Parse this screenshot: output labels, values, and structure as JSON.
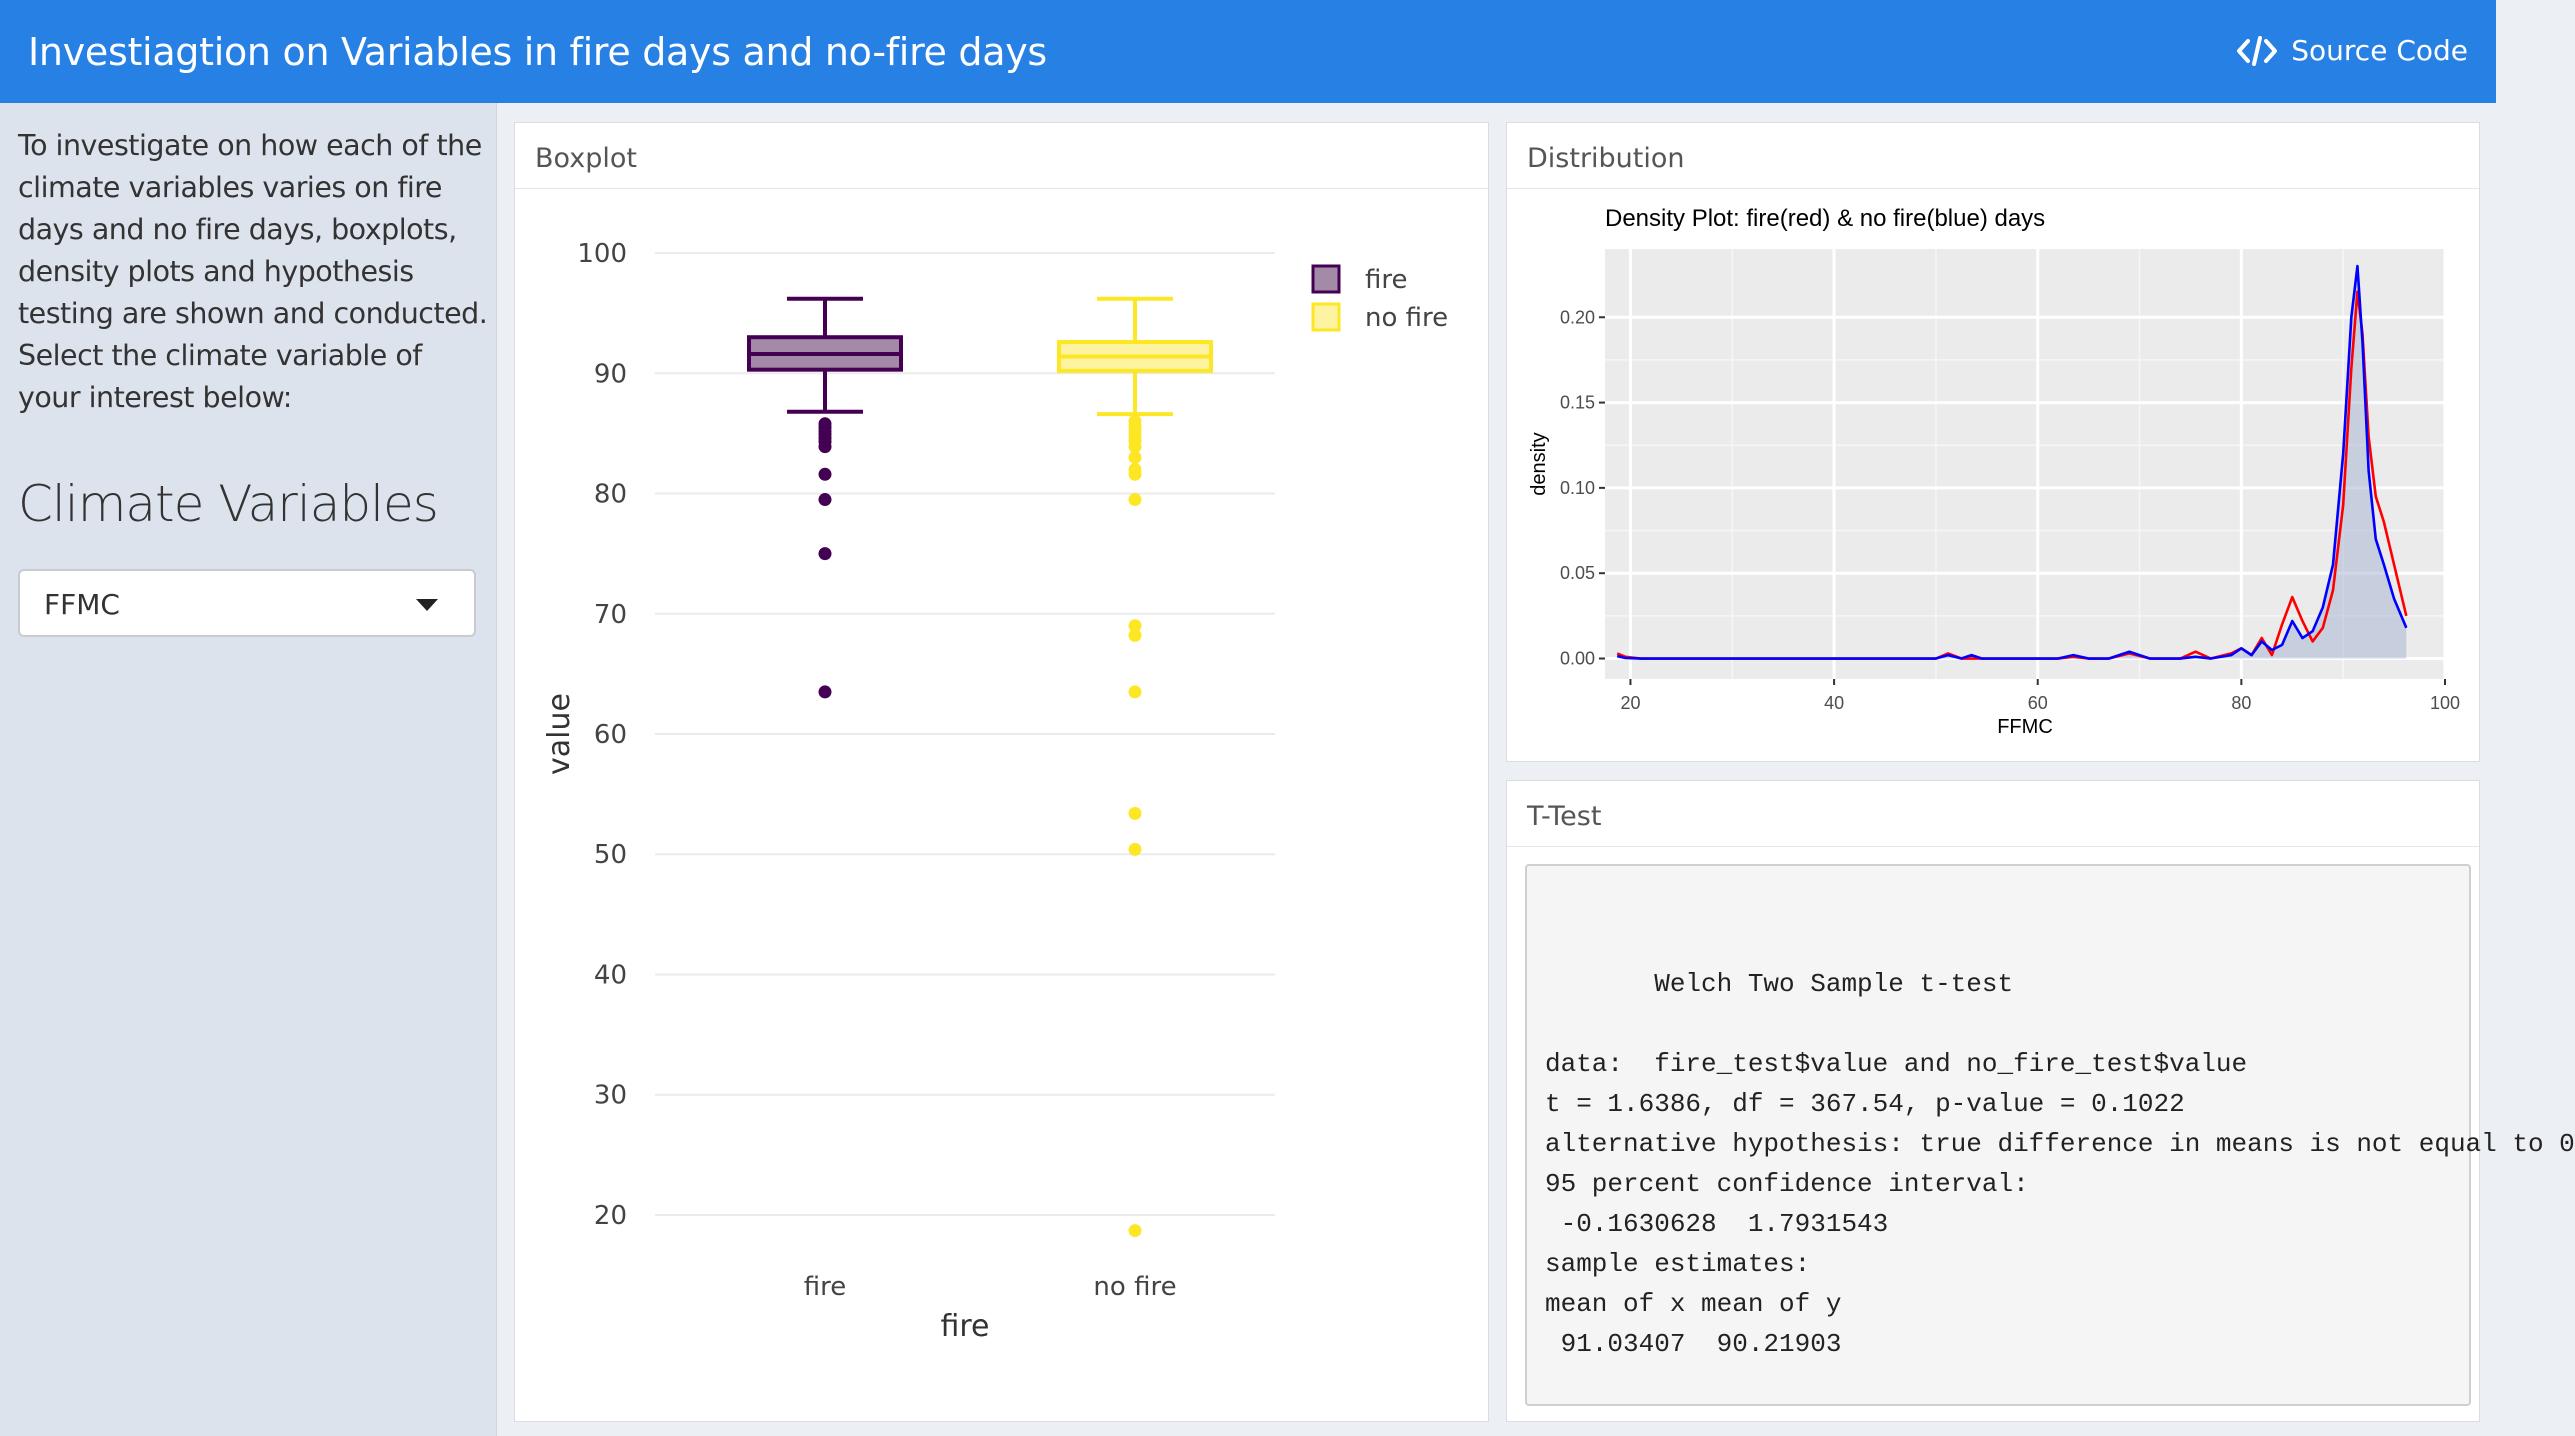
{
  "navbar": {
    "title": "Investiagtion on Variables in fire days and no-fire days",
    "source_code_label": "Source Code",
    "bg_color": "#2780e3"
  },
  "sidebar": {
    "description": "To investigate on how each of the climate variables varies on fire days and no fire days, boxplots, density plots and hypothesis testing are shown and conducted. Select the climate variable of your interest below:",
    "heading": "Climate Variables",
    "select_value": "FFMC"
  },
  "panels": {
    "boxplot_title": "Boxplot",
    "distribution_title": "Distribution",
    "ttest_title": "T-Test"
  },
  "ttest": {
    "lines": [
      "",
      "       Welch Two Sample t-test",
      "",
      "data:  fire_test$value and no_fire_test$value",
      "t = 1.6386, df = 367.54, p-value = 0.1022",
      "alternative hypothesis: true difference in means is not equal to 0",
      "95 percent confidence interval:",
      " -0.1630628  1.7931543",
      "sample estimates:",
      "mean of x mean of y",
      " 91.03407  90.21903"
    ]
  },
  "chart_data": [
    {
      "type": "boxplot",
      "xlabel": "fire",
      "ylabel": "value",
      "ylim": [
        18,
        102
      ],
      "yticks": [
        20,
        30,
        40,
        50,
        60,
        70,
        80,
        90,
        100
      ],
      "categories": [
        "fire",
        "no fire"
      ],
      "legend": {
        "title": "",
        "placement": "right",
        "entries": [
          "fire",
          "no fire"
        ]
      },
      "grid": true,
      "series": [
        {
          "name": "fire",
          "color": "#440154",
          "fill": "#a38ba8",
          "min": 86.8,
          "q1": 90.3,
          "median": 91.6,
          "q3": 93.0,
          "max": 96.2,
          "outliers": [
            85.8,
            85.5,
            85.2,
            84.9,
            84.6,
            84.3,
            83.9,
            81.6,
            79.5,
            75.0,
            63.5
          ]
        },
        {
          "name": "no fire",
          "color": "#fde725",
          "fill": "#fdf3a0",
          "min": 86.6,
          "q1": 90.2,
          "median": 91.4,
          "q3": 92.6,
          "max": 96.2,
          "outliers": [
            86.0,
            85.6,
            85.2,
            84.8,
            84.4,
            83.9,
            83.0,
            82.0,
            81.6,
            79.5,
            69.0,
            68.2,
            63.5,
            53.4,
            50.4,
            18.7
          ]
        }
      ]
    },
    {
      "type": "area",
      "title": "Density Plot: fire(red) & no fire(blue) days",
      "xlabel": "FFMC",
      "ylabel": "density",
      "xlim": [
        17.5,
        100
      ],
      "ylim": [
        -0.012,
        0.24
      ],
      "xticks": [
        20,
        40,
        60,
        80,
        100
      ],
      "yticks": [
        0.0,
        0.05,
        0.1,
        0.15,
        0.2
      ],
      "ytick_labels": [
        "0.00",
        "0.05",
        "0.10",
        "0.15",
        "0.20"
      ],
      "grid": true,
      "series": [
        {
          "name": "fire",
          "color": "#ff0000",
          "x": [
            18.7,
            19.5,
            21,
            30,
            48,
            50,
            51.2,
            52.5,
            54,
            58,
            62,
            63.5,
            65,
            67,
            69,
            71,
            74,
            75.5,
            77,
            79,
            80,
            81,
            82,
            83,
            84,
            85,
            86,
            87,
            88,
            89,
            90,
            90.8,
            91.4,
            91.9,
            92.5,
            93.2,
            94,
            95,
            96.2
          ],
          "y": [
            0.003,
            0.001,
            0.0,
            0.0,
            0.0,
            0.0,
            0.003,
            0.0,
            0.0,
            0.0,
            0.0,
            0.001,
            0.0,
            0.0,
            0.003,
            0.0,
            0.0,
            0.004,
            0.0,
            0.003,
            0.006,
            0.002,
            0.012,
            0.002,
            0.02,
            0.036,
            0.022,
            0.01,
            0.018,
            0.04,
            0.09,
            0.17,
            0.215,
            0.19,
            0.13,
            0.095,
            0.08,
            0.055,
            0.025
          ]
        },
        {
          "name": "no fire",
          "color": "#0000ff",
          "fill": "#a9b8d6",
          "x": [
            18.7,
            19.5,
            21,
            30,
            48,
            50,
            51.2,
            52.5,
            53.5,
            54.5,
            56,
            60,
            62,
            63.5,
            65,
            67,
            69,
            71,
            74,
            75.5,
            77,
            79,
            80,
            81,
            82,
            83,
            84,
            85,
            86,
            87,
            88,
            89,
            90,
            90.8,
            91.4,
            91.9,
            92.5,
            93.2,
            94,
            95,
            96.2
          ],
          "y": [
            0.0015,
            0.0003,
            0.0,
            0.0,
            0.0,
            0.0,
            0.002,
            0.0,
            0.002,
            0.0,
            0.0,
            0.0,
            0.0,
            0.002,
            0.0,
            0.0,
            0.004,
            0.0,
            0.0,
            0.001,
            0.0,
            0.002,
            0.006,
            0.002,
            0.01,
            0.005,
            0.008,
            0.022,
            0.012,
            0.016,
            0.03,
            0.055,
            0.12,
            0.2,
            0.23,
            0.185,
            0.11,
            0.07,
            0.055,
            0.035,
            0.018
          ]
        }
      ]
    }
  ]
}
